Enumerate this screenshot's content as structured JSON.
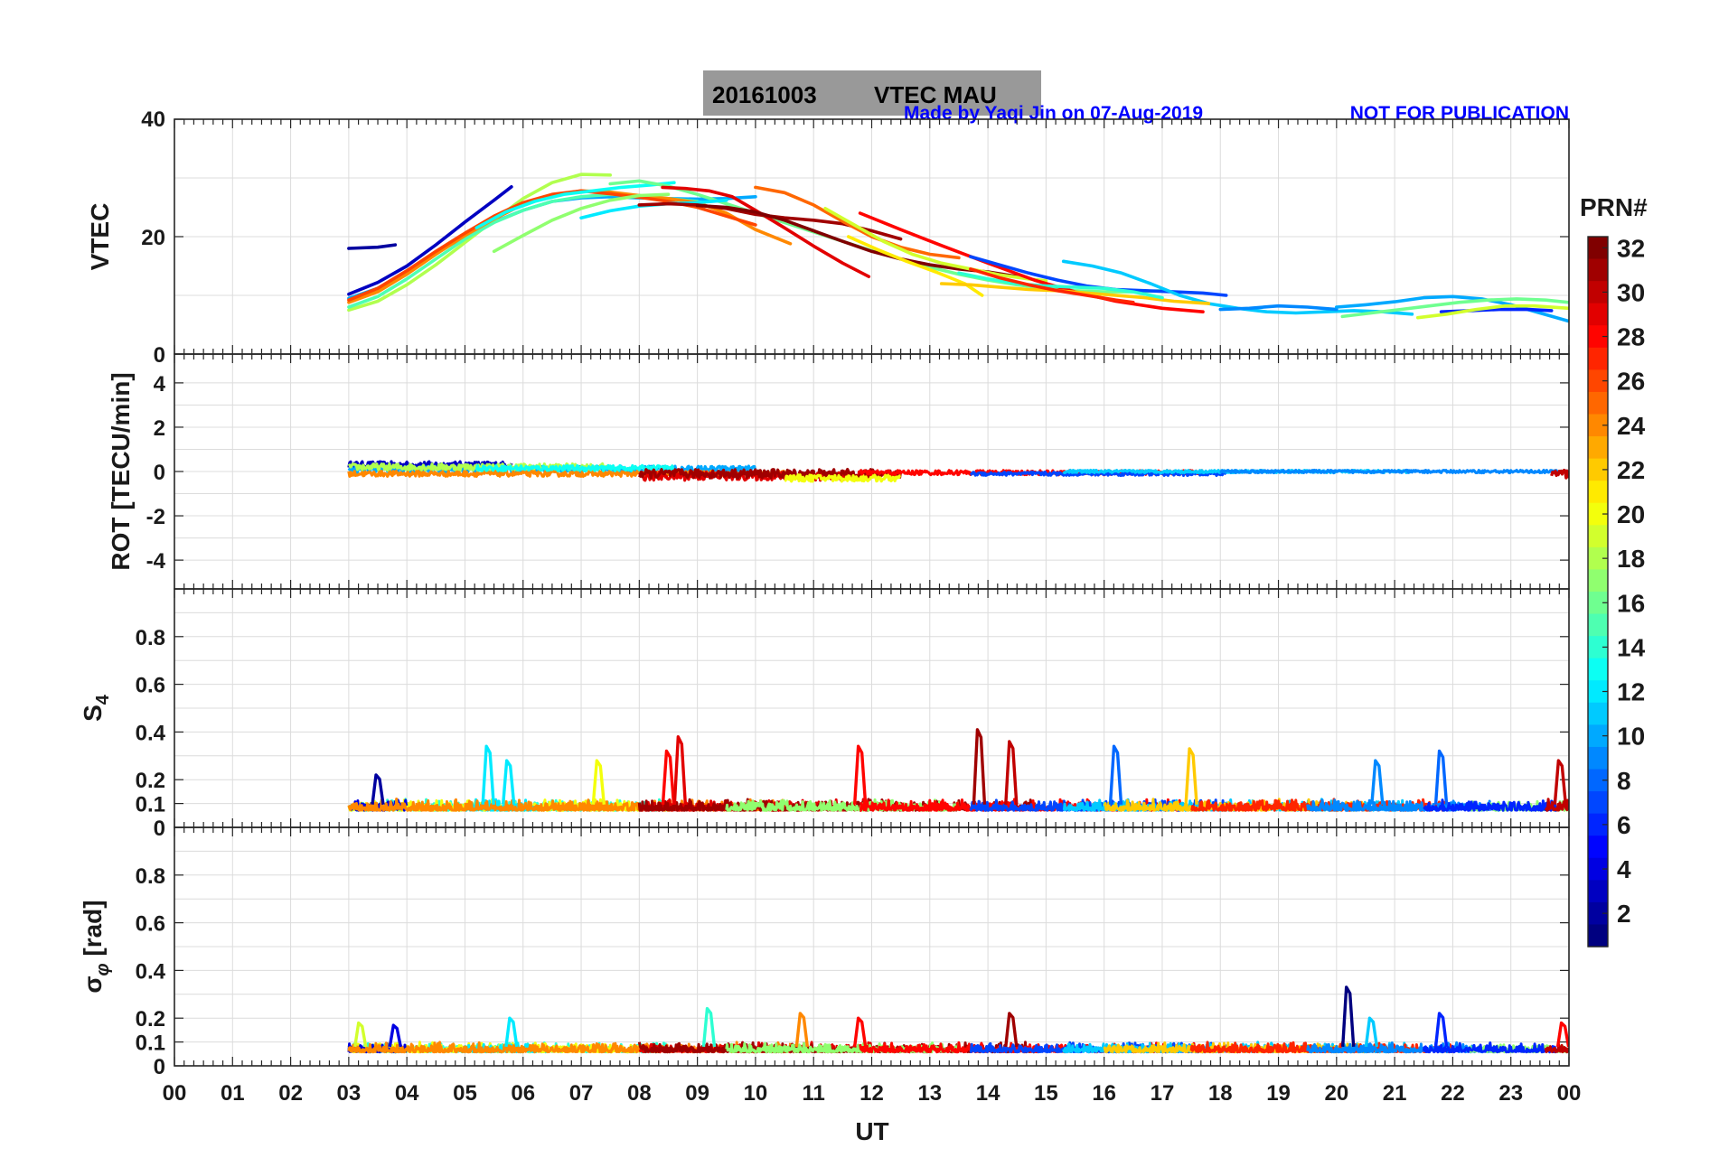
{
  "figure": {
    "title_date": "20161003",
    "title_text": "VTEC  MAU",
    "credit": "Made by Yaqi Jin on 07-Aug-2019",
    "notice": "NOT FOR PUBLICATION",
    "x_axis_label": "UT",
    "colorbar_label": "PRN#"
  },
  "chart_data": [
    {
      "type": "line",
      "ylabel": "VTEC",
      "ylim": [
        0,
        40
      ],
      "yticks": [
        "0",
        "20",
        "40"
      ],
      "xlim": [
        0,
        24
      ],
      "grid": true,
      "series": [
        {
          "prn": 2,
          "x": [
            3.0,
            3.5,
            3.8
          ],
          "y": [
            18.0,
            18.2,
            18.6
          ]
        },
        {
          "prn": 3,
          "x": [
            3.0,
            3.5,
            4.0,
            4.5,
            5.0,
            5.5,
            5.8
          ],
          "y": [
            10.2,
            12.2,
            15.0,
            18.6,
            22.5,
            26.2,
            28.5
          ]
        },
        {
          "prn": 10,
          "x": [
            3.0,
            3.5,
            4.0,
            4.5,
            5.0,
            5.5,
            6.0,
            6.5,
            7.0,
            7.5,
            8.0,
            8.5,
            9.0,
            9.5,
            10.0
          ],
          "y": [
            9.5,
            11.2,
            14.0,
            17.2,
            20.0,
            22.5,
            24.5,
            26.0,
            26.6,
            26.8,
            26.6,
            26.5,
            26.4,
            26.5,
            26.8
          ]
        },
        {
          "prn": 18,
          "x": [
            3.0,
            3.5,
            4.0,
            4.5,
            5.0,
            5.5,
            6.0,
            6.5,
            7.0,
            7.5
          ],
          "y": [
            7.5,
            9.0,
            11.8,
            15.2,
            19.0,
            22.8,
            26.5,
            29.2,
            30.6,
            30.5
          ]
        },
        {
          "prn": 15,
          "x": [
            3.0,
            3.5,
            4.0,
            4.5,
            5.0,
            5.5,
            6.0,
            6.5,
            7.0,
            7.5,
            8.0,
            8.5,
            9.0
          ],
          "y": [
            8.0,
            9.8,
            12.8,
            16.2,
            19.6,
            22.4,
            24.5,
            26.0,
            26.8,
            27.2,
            27.0,
            26.5,
            26.0
          ]
        },
        {
          "prn": 24,
          "x": [
            3.0,
            3.5,
            4.0,
            4.5,
            5.0,
            5.5,
            6.0,
            6.5,
            7.0,
            7.5,
            8.0,
            8.5,
            9.0,
            9.5,
            10.0,
            10.6
          ],
          "y": [
            8.8,
            10.6,
            13.6,
            17.0,
            20.2,
            23.0,
            25.5,
            27.0,
            27.8,
            27.6,
            27.0,
            26.5,
            25.8,
            24.0,
            21.2,
            18.8
          ]
        },
        {
          "prn": 26,
          "x": [
            3.0,
            3.5,
            4.0,
            4.5,
            5.0,
            5.5,
            6.0,
            6.5,
            7.0,
            7.5,
            8.0,
            8.5,
            9.0,
            9.5,
            10.0
          ],
          "y": [
            9.2,
            11.2,
            14.2,
            17.5,
            20.6,
            23.5,
            25.8,
            27.2,
            27.8,
            27.3,
            26.7,
            26.0,
            25.0,
            23.5,
            22.0
          ]
        },
        {
          "prn": 13,
          "x": [
            5.2,
            5.7,
            6.2,
            6.7,
            7.2,
            7.7,
            8.2,
            8.6
          ],
          "y": [
            21.5,
            24.2,
            26.0,
            27.2,
            27.8,
            28.4,
            28.8,
            29.2
          ]
        },
        {
          "prn": 16,
          "x": [
            7.5,
            8.0,
            8.5,
            9.0,
            9.5,
            10.0,
            10.5,
            11.0,
            11.5,
            12.0,
            12.5,
            13.0,
            13.5,
            14.0,
            14.5,
            15.0,
            15.5,
            16.0,
            16.5,
            17.0
          ],
          "y": [
            29.0,
            29.5,
            28.6,
            27.2,
            25.6,
            24.0,
            22.4,
            20.8,
            19.2,
            17.6,
            16.2,
            14.8,
            13.6,
            12.6,
            11.8,
            11.2,
            10.8,
            10.6,
            10.6,
            10.8
          ]
        },
        {
          "prn": 17,
          "x": [
            5.5,
            6.0,
            6.5,
            7.0,
            7.5,
            8.0,
            8.5
          ],
          "y": [
            17.5,
            20.2,
            22.8,
            24.8,
            26.2,
            27.0,
            27.2
          ]
        },
        {
          "prn": 12,
          "x": [
            7.0,
            7.5,
            8.0,
            8.5,
            9.0,
            9.5
          ],
          "y": [
            23.2,
            24.4,
            25.2,
            25.6,
            25.8,
            26.2
          ]
        },
        {
          "prn": 29,
          "x": [
            8.4,
            8.8,
            9.2,
            9.6,
            10.0,
            10.5,
            11.0,
            11.5,
            11.95
          ],
          "y": [
            28.4,
            28.2,
            27.8,
            26.8,
            24.5,
            21.5,
            18.4,
            15.5,
            13.2
          ]
        },
        {
          "prn": 31,
          "x": [
            8.0,
            8.5,
            9.0,
            9.5,
            10.0,
            10.5,
            11.0,
            11.5,
            12.0,
            12.5
          ],
          "y": [
            25.4,
            25.6,
            25.4,
            24.8,
            23.8,
            23.2,
            22.8,
            22.2,
            21.0,
            19.6
          ]
        },
        {
          "prn": 32,
          "x": [
            9.0,
            9.5,
            10.0,
            10.5,
            11.0,
            11.5,
            12.0,
            12.5,
            13.0,
            13.5,
            14.0,
            14.5
          ],
          "y": [
            25.3,
            25.0,
            24.2,
            22.8,
            21.0,
            19.2,
            17.5,
            16.2,
            15.2,
            14.5,
            14.0,
            13.2
          ]
        },
        {
          "prn": 25,
          "x": [
            10.0,
            10.5,
            11.0,
            11.5,
            12.0,
            12.5,
            13.0,
            13.5
          ],
          "y": [
            28.4,
            27.5,
            25.4,
            22.6,
            20.0,
            18.2,
            17.0,
            16.4
          ]
        },
        {
          "prn": 19,
          "x": [
            11.2,
            11.7,
            12.2,
            12.7,
            13.2,
            13.7,
            14.2,
            14.7,
            15.0
          ],
          "y": [
            24.8,
            22.0,
            19.2,
            17.0,
            15.5,
            14.5,
            13.5,
            12.8,
            12.5
          ]
        },
        {
          "prn": 21,
          "x": [
            11.6,
            12.1,
            12.6,
            13.1,
            13.6,
            13.9
          ],
          "y": [
            20.0,
            17.8,
            15.8,
            14.0,
            12.0,
            10.0
          ]
        },
        {
          "prn": 28,
          "x": [
            11.8,
            12.5,
            13.2,
            14.0,
            14.8,
            15.5,
            16.2,
            17.0,
            17.7
          ],
          "y": [
            24.0,
            21.2,
            18.5,
            15.5,
            12.6,
            10.6,
            9.0,
            7.8,
            7.2
          ]
        },
        {
          "prn": 7,
          "x": [
            13.7,
            14.2,
            14.7,
            15.2,
            15.7,
            16.2,
            16.7,
            17.2,
            17.7,
            18.1
          ],
          "y": [
            16.6,
            15.2,
            13.8,
            12.6,
            11.6,
            11.0,
            10.8,
            10.6,
            10.4,
            10.0
          ]
        },
        {
          "prn": 11,
          "x": [
            15.3,
            15.8,
            16.3,
            16.8,
            17.3,
            17.8,
            18.3,
            18.8,
            19.3,
            19.8,
            20.3,
            20.8,
            21.3
          ],
          "y": [
            15.8,
            15.0,
            13.8,
            12.0,
            10.0,
            8.6,
            7.8,
            7.2,
            7.0,
            7.2,
            7.4,
            7.2,
            6.8
          ]
        },
        {
          "prn": 9,
          "x": [
            18.0,
            18.5,
            19.0,
            19.5,
            20.0
          ],
          "y": [
            7.6,
            7.8,
            8.2,
            8.0,
            7.6
          ]
        },
        {
          "prn": 22,
          "x": [
            13.2,
            13.7,
            14.2,
            14.7,
            15.2,
            15.7,
            16.2,
            16.7,
            17.2,
            17.8
          ],
          "y": [
            12.0,
            11.8,
            11.4,
            11.0,
            10.8,
            10.4,
            10.0,
            9.6,
            9.0,
            8.6
          ]
        },
        {
          "prn": 14,
          "x": [
            13.5,
            14.0,
            14.5,
            15.0,
            15.5,
            16.0,
            16.5,
            17.0
          ],
          "y": [
            13.8,
            12.8,
            12.0,
            11.6,
            11.4,
            11.2,
            10.6,
            9.6
          ]
        },
        {
          "prn": 27,
          "x": [
            13.7,
            14.2,
            14.7,
            15.2,
            15.7,
            16.2,
            16.5
          ],
          "y": [
            14.5,
            13.0,
            11.8,
            10.8,
            10.0,
            9.2,
            8.8
          ]
        },
        {
          "prn": 10,
          "x": [
            20.0,
            20.5,
            21.0,
            21.5,
            22.0,
            22.5,
            23.0,
            23.5,
            24.0
          ],
          "y": [
            8.0,
            8.4,
            8.9,
            9.6,
            9.8,
            9.4,
            8.4,
            7.0,
            5.6
          ]
        },
        {
          "prn": 6,
          "x": [
            21.8,
            22.3,
            22.8,
            23.3,
            23.7
          ],
          "y": [
            7.2,
            7.4,
            7.6,
            7.6,
            7.4
          ]
        },
        {
          "prn": 16,
          "x": [
            20.1,
            20.6,
            21.1,
            21.6,
            22.1,
            22.6,
            23.1,
            23.6,
            24.0
          ],
          "y": [
            6.4,
            7.0,
            7.6,
            8.2,
            8.8,
            9.2,
            9.4,
            9.2,
            8.8
          ]
        },
        {
          "prn": 19,
          "x": [
            21.4,
            21.9,
            22.4,
            22.9,
            23.4,
            24.0
          ],
          "y": [
            6.2,
            6.8,
            7.6,
            8.2,
            8.2,
            7.8
          ]
        }
      ]
    },
    {
      "type": "scatter",
      "ylabel": "ROT [TECU/min]",
      "ylim": [
        -5.3,
        5.3
      ],
      "yticks": [
        "-4",
        "-2",
        "0",
        "2",
        "4"
      ],
      "xlim": [
        0,
        24
      ],
      "grid": true,
      "series": [
        {
          "prn": 3,
          "x_range": [
            3.0,
            5.8
          ],
          "level": 0.3,
          "spread": 0.15
        },
        {
          "prn": 10,
          "x_range": [
            3.0,
            10.0
          ],
          "level": 0.1,
          "spread": 0.15
        },
        {
          "prn": 18,
          "x_range": [
            3.0,
            7.5
          ],
          "level": 0.2,
          "spread": 0.15
        },
        {
          "prn": 24,
          "x_range": [
            3.0,
            10.6
          ],
          "level": -0.1,
          "spread": 0.12
        },
        {
          "prn": 13,
          "x_range": [
            5.2,
            8.6
          ],
          "level": 0.15,
          "spread": 0.12
        },
        {
          "prn": 29,
          "x_range": [
            8.0,
            12.0
          ],
          "level": -0.2,
          "spread": 0.2
        },
        {
          "prn": 31,
          "x_range": [
            8.0,
            12.5
          ],
          "level": -0.1,
          "spread": 0.2
        },
        {
          "prn": 20,
          "x_range": [
            10.5,
            12.5
          ],
          "level": -0.3,
          "spread": 0.15
        },
        {
          "prn": 28,
          "x_range": [
            11.8,
            17.7
          ],
          "level": -0.05,
          "spread": 0.1
        },
        {
          "prn": 7,
          "x_range": [
            13.7,
            18.1
          ],
          "level": -0.1,
          "spread": 0.08
        },
        {
          "prn": 11,
          "x_range": [
            15.3,
            21.3
          ],
          "level": 0.0,
          "spread": 0.06
        },
        {
          "prn": 9,
          "x_range": [
            18.0,
            24.0
          ],
          "level": 0.0,
          "spread": 0.06
        },
        {
          "prn": 30,
          "x_range": [
            23.7,
            24.0
          ],
          "level": -0.1,
          "spread": 0.2
        }
      ]
    },
    {
      "type": "line",
      "ylabel": "S4",
      "ylim": [
        0,
        1
      ],
      "yticks": [
        "0",
        "0.1",
        "0.2",
        "0.4",
        "0.6",
        "0.8"
      ],
      "xlim": [
        0,
        24
      ],
      "grid": true,
      "baseline": [
        0.05,
        0.12
      ],
      "peaks": [
        {
          "prn": 2,
          "x": 3.5,
          "y": 0.22
        },
        {
          "prn": 12,
          "x": 5.4,
          "y": 0.34
        },
        {
          "prn": 12,
          "x": 5.75,
          "y": 0.28
        },
        {
          "prn": 20,
          "x": 7.3,
          "y": 0.28
        },
        {
          "prn": 28,
          "x": 8.5,
          "y": 0.32
        },
        {
          "prn": 29,
          "x": 8.7,
          "y": 0.38
        },
        {
          "prn": 28,
          "x": 11.8,
          "y": 0.34
        },
        {
          "prn": 31,
          "x": 13.85,
          "y": 0.41
        },
        {
          "prn": 30,
          "x": 14.4,
          "y": 0.36
        },
        {
          "prn": 8,
          "x": 16.2,
          "y": 0.34
        },
        {
          "prn": 22,
          "x": 17.5,
          "y": 0.33
        },
        {
          "prn": 9,
          "x": 20.7,
          "y": 0.28
        },
        {
          "prn": 8,
          "x": 21.8,
          "y": 0.32
        },
        {
          "prn": 30,
          "x": 23.85,
          "y": 0.28
        }
      ]
    },
    {
      "type": "line",
      "ylabel": "σφ [rad]",
      "ylim": [
        0,
        1
      ],
      "yticks": [
        "0",
        "0.1",
        "0.2",
        "0.4",
        "0.6",
        "0.8"
      ],
      "xlim": [
        0,
        24
      ],
      "grid": true,
      "baseline": [
        0.04,
        0.1
      ],
      "peaks": [
        {
          "prn": 19,
          "x": 3.2,
          "y": 0.18
        },
        {
          "prn": 4,
          "x": 3.8,
          "y": 0.17
        },
        {
          "prn": 12,
          "x": 5.8,
          "y": 0.2
        },
        {
          "prn": 14,
          "x": 9.2,
          "y": 0.24
        },
        {
          "prn": 24,
          "x": 10.8,
          "y": 0.22
        },
        {
          "prn": 28,
          "x": 11.8,
          "y": 0.2
        },
        {
          "prn": 31,
          "x": 14.4,
          "y": 0.22
        },
        {
          "prn": 1,
          "x": 20.2,
          "y": 0.33
        },
        {
          "prn": 11,
          "x": 20.6,
          "y": 0.2
        },
        {
          "prn": 6,
          "x": 21.8,
          "y": 0.22
        },
        {
          "prn": 28,
          "x": 23.9,
          "y": 0.18
        }
      ]
    }
  ],
  "x_axis": {
    "ticks": [
      "00",
      "01",
      "02",
      "03",
      "04",
      "05",
      "06",
      "07",
      "08",
      "09",
      "10",
      "11",
      "12",
      "13",
      "14",
      "15",
      "16",
      "17",
      "18",
      "19",
      "20",
      "21",
      "22",
      "23",
      "00"
    ]
  },
  "colorbar": {
    "min": 1,
    "max": 32,
    "ticks": [
      "2",
      "4",
      "6",
      "8",
      "10",
      "12",
      "14",
      "16",
      "18",
      "20",
      "22",
      "24",
      "26",
      "28",
      "30",
      "32"
    ],
    "colormap": "jet"
  }
}
